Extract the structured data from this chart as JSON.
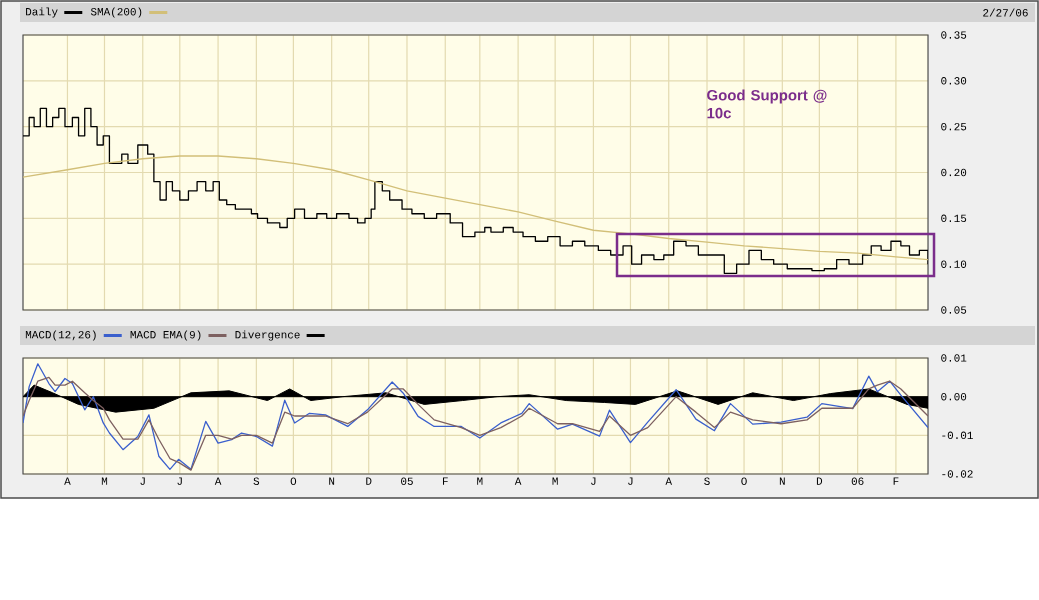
{
  "chart_data": [
    {
      "type": "step",
      "legend": "top left",
      "grid": true,
      "tick_labels": "y",
      "marker": "none",
      "annotations": [
        "2/27/06",
        "Good Support @ 10c"
      ],
      "xlim": [
        "2004-02-25",
        "2006-02-27"
      ],
      "ylim": [
        0.05,
        0.35
      ],
      "xticks": [
        {
          "value": "2004-04-01",
          "label": null
        },
        {
          "value": "2004-05-01",
          "label": null
        },
        {
          "value": "2004-06-01",
          "label": null
        },
        {
          "value": "2004-07-01",
          "label": null
        },
        {
          "value": "2004-08-01",
          "label": null
        },
        {
          "value": "2004-09-01",
          "label": null
        },
        {
          "value": "2004-10-01",
          "label": null
        },
        {
          "value": "2004-11-01",
          "label": null
        },
        {
          "value": "2004-12-01",
          "label": null
        },
        {
          "value": "2005-01-01",
          "label": null
        },
        {
          "value": "2005-02-01",
          "label": null
        },
        {
          "value": "2005-03-01",
          "label": null
        },
        {
          "value": "2005-04-01",
          "label": null
        },
        {
          "value": "2005-05-01",
          "label": null
        },
        {
          "value": "2005-06-01",
          "label": null
        },
        {
          "value": "2005-07-01",
          "label": null
        },
        {
          "value": "2005-08-01",
          "label": null
        },
        {
          "value": "2005-09-01",
          "label": null
        },
        {
          "value": "2005-10-01",
          "label": null
        },
        {
          "value": "2005-11-01",
          "label": null
        },
        {
          "value": "2005-12-01",
          "label": null
        },
        {
          "value": "2006-01-01",
          "label": null
        },
        {
          "value": "2006-02-01",
          "label": null
        }
      ],
      "yticks": [
        {
          "value": 0.05,
          "label": "0.05"
        },
        {
          "value": 0.1,
          "label": "0.10"
        },
        {
          "value": 0.15,
          "label": "0.15"
        },
        {
          "value": 0.2,
          "label": "0.20"
        },
        {
          "value": 0.25,
          "label": "0.25"
        },
        {
          "value": 0.3,
          "label": "0.30"
        },
        {
          "value": 0.35,
          "label": "0.35"
        }
      ],
      "series": [
        {
          "name": "Daily",
          "color": "#000000",
          "x": [
            "2004-02-25",
            "2004-03-01",
            "2004-03-05",
            "2004-03-10",
            "2004-03-15",
            "2004-03-20",
            "2004-03-25",
            "2004-03-30",
            "2004-04-05",
            "2004-04-10",
            "2004-04-15",
            "2004-04-20",
            "2004-04-25",
            "2004-04-30",
            "2004-05-05",
            "2004-05-15",
            "2004-05-20",
            "2004-05-28",
            "2004-06-05",
            "2004-06-10",
            "2004-06-15",
            "2004-06-20",
            "2004-06-25",
            "2004-07-01",
            "2004-07-08",
            "2004-07-15",
            "2004-07-22",
            "2004-07-28",
            "2004-08-02",
            "2004-08-08",
            "2004-08-15",
            "2004-08-22",
            "2004-08-28",
            "2004-09-02",
            "2004-09-10",
            "2004-09-20",
            "2004-09-26",
            "2004-10-02",
            "2004-10-10",
            "2004-10-20",
            "2004-10-28",
            "2004-11-05",
            "2004-11-15",
            "2004-11-22",
            "2004-11-28",
            "2004-12-03",
            "2004-12-06",
            "2004-12-12",
            "2004-12-18",
            "2004-12-28",
            "2005-01-05",
            "2005-01-15",
            "2005-01-25",
            "2005-02-05",
            "2005-02-15",
            "2005-02-25",
            "2005-03-05",
            "2005-03-10",
            "2005-03-20",
            "2005-03-28",
            "2005-04-05",
            "2005-04-15",
            "2005-04-25",
            "2005-05-05",
            "2005-05-15",
            "2005-05-25",
            "2005-06-05",
            "2005-06-15",
            "2005-06-25",
            "2005-07-02",
            "2005-07-10",
            "2005-07-20",
            "2005-07-28",
            "2005-08-05",
            "2005-08-15",
            "2005-08-25",
            "2005-09-05",
            "2005-09-15",
            "2005-09-25",
            "2005-10-05",
            "2005-10-15",
            "2005-10-25",
            "2005-11-05",
            "2005-11-15",
            "2005-11-25",
            "2005-12-05",
            "2005-12-15",
            "2005-12-25",
            "2006-01-05",
            "2006-01-12",
            "2006-01-20",
            "2006-01-28",
            "2006-02-05",
            "2006-02-12",
            "2006-02-20",
            "2006-02-27"
          ],
          "values": [
            0.24,
            0.26,
            0.25,
            0.27,
            0.25,
            0.26,
            0.27,
            0.25,
            0.26,
            0.24,
            0.27,
            0.25,
            0.23,
            0.24,
            0.21,
            0.22,
            0.21,
            0.23,
            0.22,
            0.19,
            0.17,
            0.19,
            0.18,
            0.17,
            0.18,
            0.19,
            0.18,
            0.19,
            0.17,
            0.165,
            0.16,
            0.16,
            0.155,
            0.15,
            0.145,
            0.14,
            0.15,
            0.16,
            0.15,
            0.155,
            0.15,
            0.155,
            0.15,
            0.145,
            0.15,
            0.16,
            0.19,
            0.18,
            0.17,
            0.16,
            0.155,
            0.15,
            0.155,
            0.145,
            0.13,
            0.135,
            0.14,
            0.135,
            0.14,
            0.135,
            0.13,
            0.125,
            0.13,
            0.12,
            0.125,
            0.12,
            0.115,
            0.11,
            0.12,
            0.1,
            0.11,
            0.105,
            0.11,
            0.125,
            0.12,
            0.11,
            0.11,
            0.09,
            0.1,
            0.115,
            0.105,
            0.1,
            0.095,
            0.095,
            0.093,
            0.095,
            0.105,
            0.1,
            0.11,
            0.12,
            0.115,
            0.125,
            0.12,
            0.11,
            0.115,
            0.1
          ]
        },
        {
          "name": "SMA(200)",
          "type": "line",
          "color": "#d2bf78",
          "x": [
            "2004-02-25",
            "2004-04-01",
            "2004-05-01",
            "2004-06-01",
            "2004-07-01",
            "2004-08-01",
            "2004-09-01",
            "2004-10-01",
            "2004-11-01",
            "2004-12-01",
            "2005-01-01",
            "2005-02-01",
            "2005-03-01",
            "2005-04-01",
            "2005-05-01",
            "2005-06-01",
            "2005-07-01",
            "2005-08-01",
            "2005-09-01",
            "2005-10-01",
            "2005-11-01",
            "2005-12-01",
            "2006-01-01",
            "2006-02-01",
            "2006-02-27"
          ],
          "values": [
            0.195,
            0.203,
            0.21,
            0.215,
            0.218,
            0.218,
            0.215,
            0.21,
            0.203,
            0.192,
            0.18,
            0.172,
            0.165,
            0.157,
            0.147,
            0.137,
            0.133,
            0.128,
            0.124,
            0.12,
            0.117,
            0.114,
            0.112,
            0.108,
            0.105
          ]
        }
      ]
    },
    {
      "type": "line",
      "legend": "top left",
      "grid": true,
      "marker": "none",
      "xlim": [
        "2004-02-25",
        "2006-02-27"
      ],
      "ylim": [
        -0.02,
        0.01
      ],
      "xticks": [
        {
          "value": "2004-04-01",
          "label": "A"
        },
        {
          "value": "2004-05-01",
          "label": "M"
        },
        {
          "value": "2004-06-01",
          "label": "J"
        },
        {
          "value": "2004-07-01",
          "label": "J"
        },
        {
          "value": "2004-08-01",
          "label": "A"
        },
        {
          "value": "2004-09-01",
          "label": "S"
        },
        {
          "value": "2004-10-01",
          "label": "O"
        },
        {
          "value": "2004-11-01",
          "label": "N"
        },
        {
          "value": "2004-12-01",
          "label": "D"
        },
        {
          "value": "2005-01-01",
          "label": "05"
        },
        {
          "value": "2005-02-01",
          "label": "F"
        },
        {
          "value": "2005-03-01",
          "label": "M"
        },
        {
          "value": "2005-04-01",
          "label": "A"
        },
        {
          "value": "2005-05-01",
          "label": "M"
        },
        {
          "value": "2005-06-01",
          "label": "J"
        },
        {
          "value": "2005-07-01",
          "label": "J"
        },
        {
          "value": "2005-08-01",
          "label": "A"
        },
        {
          "value": "2005-09-01",
          "label": "S"
        },
        {
          "value": "2005-10-01",
          "label": "O"
        },
        {
          "value": "2005-11-01",
          "label": "N"
        },
        {
          "value": "2005-12-01",
          "label": "D"
        },
        {
          "value": "2006-01-01",
          "label": "06"
        },
        {
          "value": "2006-02-01",
          "label": "F"
        }
      ],
      "yticks": [
        {
          "value": 0.01,
          "label": "0.01"
        },
        {
          "value": 0,
          "label": "0.00"
        },
        {
          "value": -0.01,
          "label": "-0.01"
        },
        {
          "value": -0.02,
          "label": "-0.02"
        }
      ],
      "series": [
        {
          "name": "MACD(12,26)",
          "color": "#3a5fcd",
          "x": [
            "2004-02-25",
            "2004-03-01",
            "2004-03-08",
            "2004-03-17",
            "2004-03-22",
            "2004-03-30",
            "2004-04-05",
            "2004-04-15",
            "2004-04-22",
            "2004-04-30",
            "2004-05-05",
            "2004-05-16",
            "2004-05-28",
            "2004-06-06",
            "2004-06-14",
            "2004-06-23",
            "2004-06-30",
            "2004-07-10",
            "2004-07-22",
            "2004-08-01",
            "2004-08-12",
            "2004-08-20",
            "2004-09-01",
            "2004-09-14",
            "2004-09-24",
            "2004-10-02",
            "2004-10-14",
            "2004-10-27",
            "2004-11-14",
            "2004-11-30",
            "2004-12-20",
            "2004-12-29",
            "2005-01-10",
            "2005-01-23",
            "2005-02-14",
            "2005-03-01",
            "2005-03-18",
            "2005-04-04",
            "2005-04-10",
            "2005-05-03",
            "2005-05-15",
            "2005-06-06",
            "2005-06-14",
            "2005-07-01",
            "2005-07-15",
            "2005-08-07",
            "2005-08-23",
            "2005-09-07",
            "2005-09-20",
            "2005-10-08",
            "2005-10-31",
            "2005-11-21",
            "2005-12-03",
            "2005-12-28",
            "2006-01-10",
            "2006-01-17",
            "2006-01-27",
            "2006-02-05",
            "2006-02-27"
          ],
          "values": [
            -0.0068,
            0.0026,
            0.0085,
            0.0034,
            0.0013,
            0.0047,
            0.0034,
            -0.0034,
            0,
            -0.0068,
            -0.0094,
            -0.0137,
            -0.0103,
            -0.0047,
            -0.0154,
            -0.0188,
            -0.0162,
            -0.0188,
            -0.0064,
            -0.012,
            -0.0111,
            -0.0094,
            -0.0103,
            -0.0128,
            -0.0009,
            -0.0068,
            -0.0043,
            -0.0047,
            -0.0077,
            -0.0034,
            0.0038,
            0.0009,
            -0.0051,
            -0.0077,
            -0.0077,
            -0.0107,
            -0.0068,
            -0.0043,
            -0.0018,
            -0.0084,
            -0.0071,
            -0.0102,
            -0.0035,
            -0.0119,
            -0.0066,
            0.0018,
            -0.0058,
            -0.0088,
            -0.0018,
            -0.0071,
            -0.0066,
            -0.0053,
            -0.0018,
            -0.0031,
            0.0053,
            0.0013,
            0.004,
            0.0004,
            -0.008
          ]
        },
        {
          "name": "MACD EMA(9)",
          "color": "#7d6060",
          "x": [
            "2004-02-25",
            "2004-03-01",
            "2004-03-08",
            "2004-03-17",
            "2004-03-22",
            "2004-03-30",
            "2004-04-05",
            "2004-04-15",
            "2004-04-22",
            "2004-04-30",
            "2004-05-05",
            "2004-05-16",
            "2004-05-28",
            "2004-06-06",
            "2004-06-14",
            "2004-06-23",
            "2004-06-30",
            "2004-07-10",
            "2004-07-22",
            "2004-08-01",
            "2004-08-12",
            "2004-08-20",
            "2004-09-01",
            "2004-09-14",
            "2004-09-24",
            "2004-10-02",
            "2004-10-14",
            "2004-10-27",
            "2004-11-14",
            "2004-11-30",
            "2004-12-20",
            "2004-12-29",
            "2005-01-10",
            "2005-01-23",
            "2005-02-14",
            "2005-03-01",
            "2005-03-18",
            "2005-04-04",
            "2005-04-10",
            "2005-05-03",
            "2005-05-15",
            "2005-06-06",
            "2005-06-14",
            "2005-07-01",
            "2005-07-15",
            "2005-08-07",
            "2005-08-23",
            "2005-09-07",
            "2005-09-20",
            "2005-10-08",
            "2005-10-31",
            "2005-11-21",
            "2005-12-03",
            "2005-12-28",
            "2006-01-10",
            "2006-01-17",
            "2006-01-27",
            "2006-02-05",
            "2006-02-27"
          ],
          "values": [
            -0.005,
            -0.001,
            0.004,
            0.005,
            0.003,
            0.003,
            0.004,
            0.001,
            -0.001,
            -0.003,
            -0.006,
            -0.011,
            -0.011,
            -0.006,
            -0.011,
            -0.016,
            -0.017,
            -0.019,
            -0.01,
            -0.01,
            -0.011,
            -0.01,
            -0.01,
            -0.012,
            -0.004,
            -0.005,
            -0.005,
            -0.005,
            -0.007,
            -0.004,
            0.002,
            0.002,
            -0.002,
            -0.006,
            -0.008,
            -0.01,
            -0.008,
            -0.005,
            -0.003,
            -0.007,
            -0.007,
            -0.009,
            -0.005,
            -0.01,
            -0.008,
            0,
            -0.004,
            -0.008,
            -0.004,
            -0.006,
            -0.007,
            -0.006,
            -0.003,
            -0.003,
            0.002,
            0.003,
            0.004,
            0.002,
            -0.005
          ]
        },
        {
          "name": "Divergence",
          "type": "area",
          "color": "#000000",
          "x": [
            "2004-02-25",
            "2004-03-05",
            "2004-03-20",
            "2004-04-10",
            "2004-05-10",
            "2004-06-10",
            "2004-07-10",
            "2004-08-10",
            "2004-09-10",
            "2004-09-28",
            "2004-10-15",
            "2004-11-10",
            "2004-12-15",
            "2005-01-15",
            "2005-02-15",
            "2005-03-15",
            "2005-04-10",
            "2005-05-10",
            "2005-06-10",
            "2005-07-05",
            "2005-08-08",
            "2005-09-10",
            "2005-10-08",
            "2005-11-10",
            "2005-12-10",
            "2006-01-10",
            "2006-02-10",
            "2006-02-27"
          ],
          "values": [
            0,
            0.003,
            0.001,
            -0.002,
            -0.004,
            -0.003,
            0.001,
            0.0015,
            -0.001,
            0.002,
            -0.001,
            0,
            0.001,
            -0.002,
            -0.001,
            0,
            0.0005,
            -0.001,
            -0.0015,
            -0.002,
            0.0015,
            -0.002,
            0.001,
            -0.001,
            0.0008,
            0.002,
            -0.002,
            -0.003
          ]
        }
      ]
    }
  ]
}
